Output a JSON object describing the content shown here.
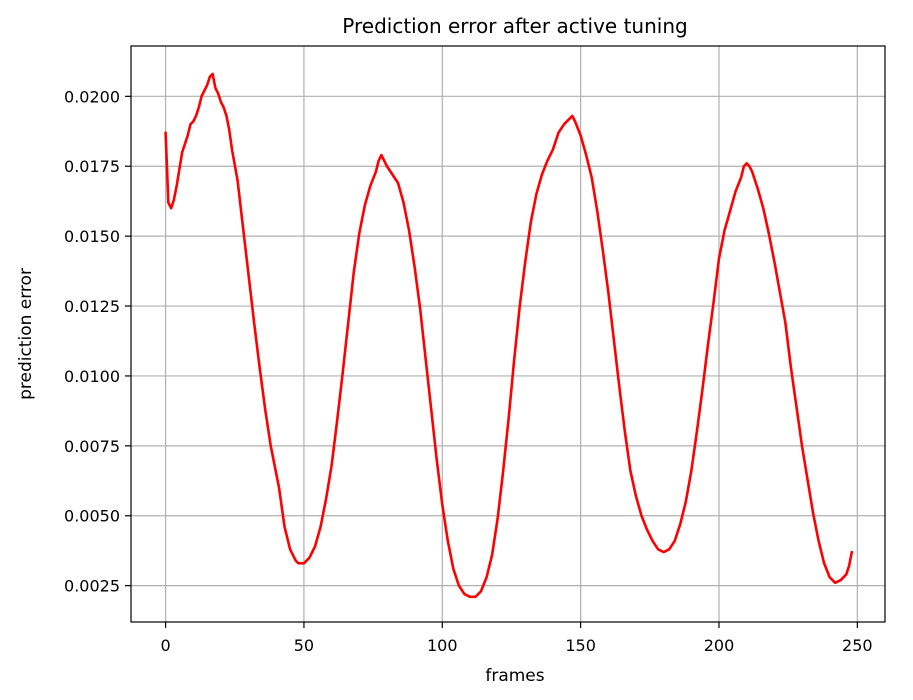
{
  "chart_data": {
    "type": "line",
    "title": "Prediction error after active tuning",
    "xlabel": "frames",
    "ylabel": "prediction error",
    "xlim": [
      -12.5,
      260
    ],
    "ylim": [
      0.0012,
      0.0218
    ],
    "grid": true,
    "x_ticks": [
      0,
      50,
      100,
      150,
      200,
      250
    ],
    "x_tick_labels": [
      "0",
      "50",
      "100",
      "150",
      "200",
      "250"
    ],
    "y_ticks": [
      0.0025,
      0.005,
      0.0075,
      0.01,
      0.0125,
      0.015,
      0.0175,
      0.02
    ],
    "y_tick_labels": [
      "0.0025",
      "0.0050",
      "0.0075",
      "0.0100",
      "0.0125",
      "0.0150",
      "0.0175",
      "0.0200"
    ],
    "series": [
      {
        "color": "#ff0000",
        "points": [
          [
            0,
            0.0187
          ],
          [
            1,
            0.0162
          ],
          [
            2,
            0.016
          ],
          [
            3,
            0.0163
          ],
          [
            4,
            0.0168
          ],
          [
            5,
            0.0174
          ],
          [
            6,
            0.018
          ],
          [
            7,
            0.0183
          ],
          [
            8,
            0.0186
          ],
          [
            9,
            0.019
          ],
          [
            10,
            0.0191
          ],
          [
            11,
            0.0193
          ],
          [
            12,
            0.0196
          ],
          [
            13,
            0.02
          ],
          [
            14,
            0.0202
          ],
          [
            15,
            0.0204
          ],
          [
            16,
            0.0207
          ],
          [
            17,
            0.0208
          ],
          [
            18,
            0.0203
          ],
          [
            19,
            0.0201
          ],
          [
            20,
            0.0198
          ],
          [
            21,
            0.0196
          ],
          [
            22,
            0.0193
          ],
          [
            23,
            0.0188
          ],
          [
            24,
            0.0181
          ],
          [
            26,
            0.017
          ],
          [
            28,
            0.0153
          ],
          [
            30,
            0.0136
          ],
          [
            32,
            0.0119
          ],
          [
            34,
            0.0103
          ],
          [
            36,
            0.0088
          ],
          [
            38,
            0.0075
          ],
          [
            40,
            0.0065
          ],
          [
            41,
            0.006
          ],
          [
            42,
            0.0053
          ],
          [
            43,
            0.0046
          ],
          [
            44,
            0.0042
          ],
          [
            45,
            0.0038
          ],
          [
            46,
            0.0036
          ],
          [
            47,
            0.0034
          ],
          [
            48,
            0.0033
          ],
          [
            49,
            0.0033
          ],
          [
            50,
            0.0033
          ],
          [
            52,
            0.0035
          ],
          [
            54,
            0.0039
          ],
          [
            56,
            0.0046
          ],
          [
            58,
            0.0056
          ],
          [
            60,
            0.0068
          ],
          [
            62,
            0.0084
          ],
          [
            64,
            0.0101
          ],
          [
            66,
            0.0119
          ],
          [
            68,
            0.0137
          ],
          [
            70,
            0.0151
          ],
          [
            72,
            0.0161
          ],
          [
            74,
            0.0168
          ],
          [
            76,
            0.0173
          ],
          [
            77,
            0.0177
          ],
          [
            78,
            0.0179
          ],
          [
            79,
            0.0177
          ],
          [
            80,
            0.0175
          ],
          [
            82,
            0.0172
          ],
          [
            84,
            0.0169
          ],
          [
            86,
            0.0162
          ],
          [
            88,
            0.0152
          ],
          [
            90,
            0.0139
          ],
          [
            92,
            0.0124
          ],
          [
            94,
            0.0106
          ],
          [
            96,
            0.0088
          ],
          [
            98,
            0.007
          ],
          [
            100,
            0.0054
          ],
          [
            102,
            0.0041
          ],
          [
            104,
            0.0031
          ],
          [
            106,
            0.0025
          ],
          [
            108,
            0.0022
          ],
          [
            110,
            0.0021
          ],
          [
            111,
            0.0021
          ],
          [
            112,
            0.0021
          ],
          [
            114,
            0.0023
          ],
          [
            116,
            0.0028
          ],
          [
            118,
            0.0036
          ],
          [
            120,
            0.0049
          ],
          [
            122,
            0.0066
          ],
          [
            124,
            0.0085
          ],
          [
            126,
            0.0106
          ],
          [
            128,
            0.0125
          ],
          [
            130,
            0.0141
          ],
          [
            132,
            0.0155
          ],
          [
            134,
            0.0165
          ],
          [
            136,
            0.0172
          ],
          [
            138,
            0.0177
          ],
          [
            140,
            0.0181
          ],
          [
            142,
            0.0187
          ],
          [
            144,
            0.019
          ],
          [
            146,
            0.0192
          ],
          [
            147,
            0.0193
          ],
          [
            148,
            0.0191
          ],
          [
            150,
            0.0186
          ],
          [
            152,
            0.0179
          ],
          [
            154,
            0.0171
          ],
          [
            156,
            0.0159
          ],
          [
            158,
            0.0145
          ],
          [
            160,
            0.013
          ],
          [
            162,
            0.0113
          ],
          [
            164,
            0.0096
          ],
          [
            166,
            0.008
          ],
          [
            168,
            0.0066
          ],
          [
            170,
            0.0057
          ],
          [
            172,
            0.005
          ],
          [
            174,
            0.0045
          ],
          [
            176,
            0.0041
          ],
          [
            178,
            0.0038
          ],
          [
            180,
            0.0037
          ],
          [
            182,
            0.0038
          ],
          [
            184,
            0.0041
          ],
          [
            186,
            0.0047
          ],
          [
            188,
            0.0055
          ],
          [
            190,
            0.0066
          ],
          [
            192,
            0.008
          ],
          [
            194,
            0.0095
          ],
          [
            196,
            0.0111
          ],
          [
            198,
            0.0126
          ],
          [
            200,
            0.0142
          ],
          [
            202,
            0.0152
          ],
          [
            204,
            0.0159
          ],
          [
            206,
            0.0166
          ],
          [
            208,
            0.0171
          ],
          [
            209,
            0.0175
          ],
          [
            210,
            0.0176
          ],
          [
            211,
            0.0175
          ],
          [
            212,
            0.0173
          ],
          [
            214,
            0.0167
          ],
          [
            216,
            0.016
          ],
          [
            218,
            0.0151
          ],
          [
            219,
            0.0146
          ],
          [
            220,
            0.0141
          ],
          [
            222,
            0.013
          ],
          [
            224,
            0.0119
          ],
          [
            226,
            0.0103
          ],
          [
            228,
            0.0089
          ],
          [
            230,
            0.0075
          ],
          [
            232,
            0.0063
          ],
          [
            234,
            0.0051
          ],
          [
            236,
            0.0041
          ],
          [
            238,
            0.0033
          ],
          [
            240,
            0.0028
          ],
          [
            242,
            0.0026
          ],
          [
            244,
            0.0027
          ],
          [
            246,
            0.0029
          ],
          [
            247,
            0.0032
          ],
          [
            248,
            0.0037
          ]
        ]
      }
    ]
  }
}
